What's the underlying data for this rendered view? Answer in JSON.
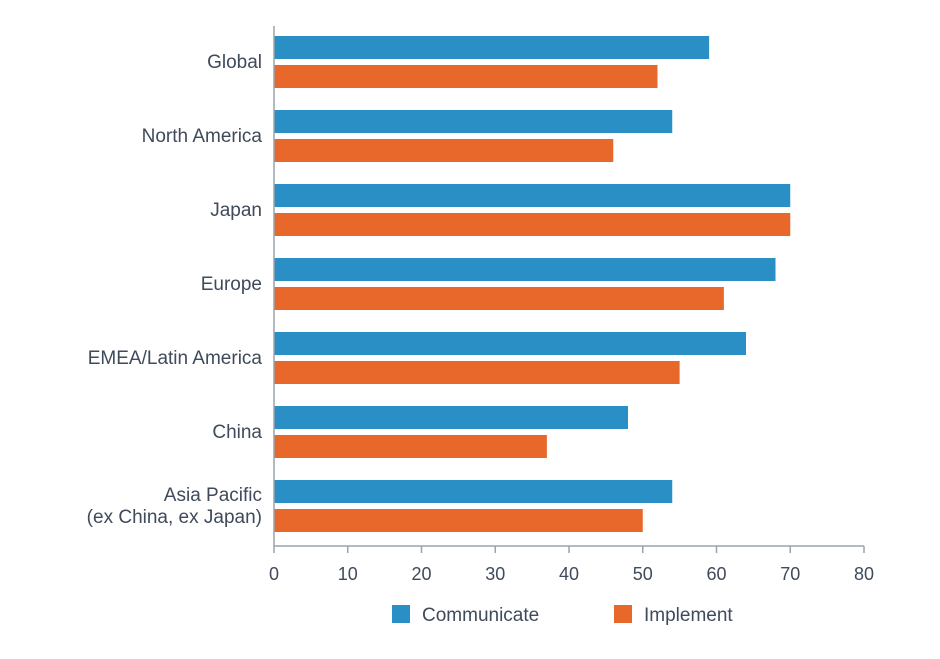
{
  "chart_data": {
    "type": "bar",
    "orientation": "horizontal",
    "categories": [
      [
        "Global"
      ],
      [
        "North America"
      ],
      [
        "Japan"
      ],
      [
        "Europe"
      ],
      [
        "EMEA/Latin America"
      ],
      [
        "China"
      ],
      [
        "Asia Pacific",
        "(ex China, ex Japan)"
      ]
    ],
    "series": [
      {
        "name": "Communicate",
        "color": "#2a8fc4",
        "values": [
          59,
          54,
          70,
          68,
          64,
          48,
          54
        ]
      },
      {
        "name": "Implement",
        "color": "#e8672a",
        "values": [
          52,
          46,
          70,
          61,
          55,
          37,
          50
        ]
      }
    ],
    "xlim": [
      0,
      80
    ],
    "xticks": [
      0,
      10,
      20,
      30,
      40,
      50,
      60,
      70,
      80
    ],
    "grid": false,
    "legend_position": "bottom-center",
    "axis_color": "#9aa3ad"
  }
}
